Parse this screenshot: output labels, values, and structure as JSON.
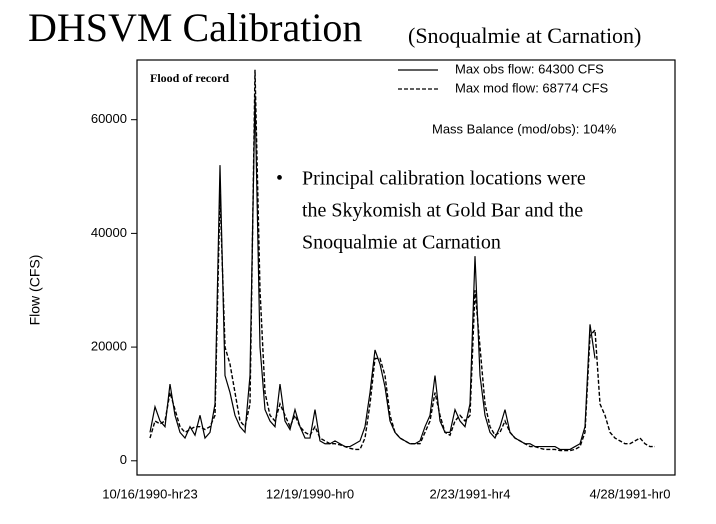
{
  "chart_data": {
    "type": "line",
    "title": "DHSVM Calibration",
    "subtitle": "(Snoqualmie at Carnation)",
    "y_label": "Flow (CFS)",
    "annotation": "Flood of record",
    "mass_balance": "Mass Balance (mod/obs): 104%",
    "bullet": [
      "Principal calibration locations were",
      "the Skykomish at Gold Bar and the",
      "Snoqualmie at Carnation"
    ],
    "categories": [
      "10/16/1990-hr23",
      null,
      null,
      null,
      null,
      null,
      null,
      null,
      null,
      null,
      null,
      null,
      null,
      null,
      null,
      null,
      null,
      null,
      null,
      null,
      null,
      null,
      null,
      null,
      null,
      null,
      null,
      null,
      null,
      null,
      null,
      null,
      "12/19/1990-hr0",
      null,
      null,
      null,
      null,
      null,
      null,
      null,
      null,
      null,
      null,
      null,
      null,
      null,
      null,
      null,
      null,
      null,
      null,
      null,
      null,
      null,
      null,
      null,
      null,
      null,
      null,
      null,
      null,
      null,
      null,
      null,
      "2/23/1991-hr4",
      null,
      null,
      null,
      null,
      null,
      null,
      null,
      null,
      null,
      null,
      null,
      null,
      null,
      null,
      null,
      null,
      null,
      null,
      null,
      null,
      null,
      null,
      null,
      null,
      null,
      null,
      null,
      null,
      null,
      null,
      null,
      "4/28/1991-hr0",
      null,
      null,
      null,
      null,
      null
    ],
    "series": [
      {
        "name": "Max obs flow: 64300 CFS",
        "color": "#000000",
        "dash": false,
        "values": [
          5000,
          9500,
          7000,
          6000,
          13500,
          8000,
          5000,
          4000,
          6000,
          4500,
          8000,
          4000,
          5000,
          10000,
          52000,
          15000,
          12000,
          8000,
          6000,
          5000,
          15000,
          64300,
          20000,
          9000,
          7000,
          6000,
          13500,
          7000,
          5500,
          9000,
          6000,
          4000,
          4000,
          9000,
          3500,
          3000,
          3000,
          3500,
          3000,
          2500,
          2500,
          3000,
          3500,
          6000,
          12000,
          19500,
          17000,
          13000,
          7000,
          5000,
          4000,
          3500,
          3000,
          3000,
          3500,
          6000,
          8000,
          15000,
          7000,
          5000,
          5000,
          9000,
          7000,
          6000,
          10000,
          36000,
          15000,
          8000,
          5000,
          4000,
          6000,
          9000,
          5000,
          4000,
          3500,
          3000,
          3000,
          2500,
          2500,
          2500,
          2500,
          2500,
          2000,
          2000,
          2000,
          2500,
          3000,
          6000,
          24000,
          18000,
          null,
          null,
          null,
          null,
          null,
          null,
          null,
          null,
          null,
          null,
          null,
          null
        ]
      },
      {
        "name": "Max mod flow: 68774 CFS",
        "color": "#000000",
        "dash": true,
        "values": [
          4000,
          7000,
          6500,
          7000,
          12000,
          9000,
          6000,
          5000,
          5500,
          6000,
          6000,
          5500,
          6000,
          8000,
          47000,
          20000,
          17000,
          12000,
          7000,
          6000,
          10000,
          68774,
          30000,
          12000,
          8000,
          7000,
          10000,
          8000,
          6000,
          8000,
          6000,
          5000,
          4500,
          6000,
          4000,
          3500,
          3000,
          3000,
          2800,
          2500,
          2200,
          2000,
          2000,
          4000,
          10000,
          18000,
          18000,
          15000,
          8000,
          5000,
          4000,
          3500,
          3000,
          3000,
          3000,
          5000,
          7000,
          12000,
          8000,
          5000,
          4500,
          7000,
          8000,
          7000,
          8000,
          30000,
          20000,
          10000,
          6000,
          4500,
          5000,
          7000,
          5000,
          4000,
          3500,
          3000,
          2500,
          2500,
          2200,
          2000,
          2000,
          2000,
          1800,
          1800,
          1800,
          2000,
          2500,
          5000,
          22000,
          23000,
          10000,
          8000,
          5000,
          4000,
          3500,
          3000,
          3000,
          3500,
          4000,
          3000,
          2500,
          2500
        ]
      }
    ],
    "ylim": [
      -2500,
      70500
    ],
    "yticks": [
      0,
      20000,
      40000,
      60000
    ]
  }
}
